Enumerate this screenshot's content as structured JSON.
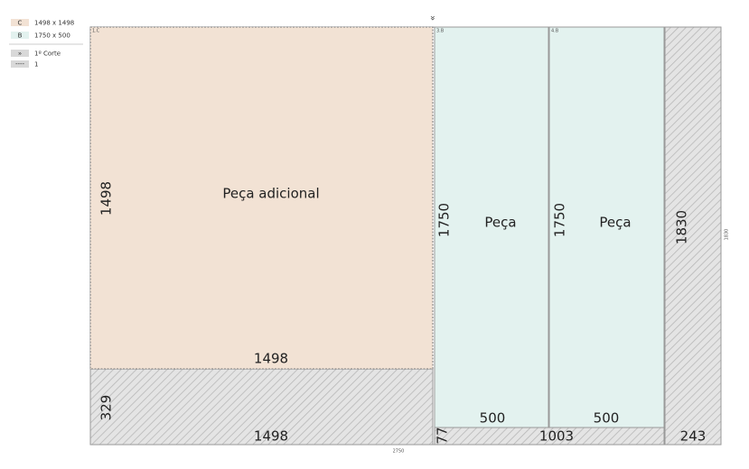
{
  "legend": [
    {
      "code": "C",
      "text": "1498 x 1498"
    },
    {
      "code": "B",
      "text": "1750 x 500"
    },
    {
      "code": "»",
      "text": "1º Corte"
    },
    {
      "code": "----",
      "text": "1"
    }
  ],
  "cut_marker": "»",
  "pieces": [
    {
      "id": "1.C",
      "label": "Peça adicional",
      "height": "1498",
      "width": "1498"
    },
    {
      "id": "3.B",
      "label": "Peça",
      "height": "1750",
      "width": "500"
    },
    {
      "id": "4.B",
      "label": "Peça",
      "height": "1750",
      "width": "500"
    }
  ],
  "waste": [
    {
      "height": "329",
      "width": "1498"
    },
    {
      "height": "77",
      "width": "1003"
    },
    {
      "height": "1830",
      "width": "243"
    }
  ],
  "sheet": {
    "height": "1830",
    "width": "2750"
  }
}
